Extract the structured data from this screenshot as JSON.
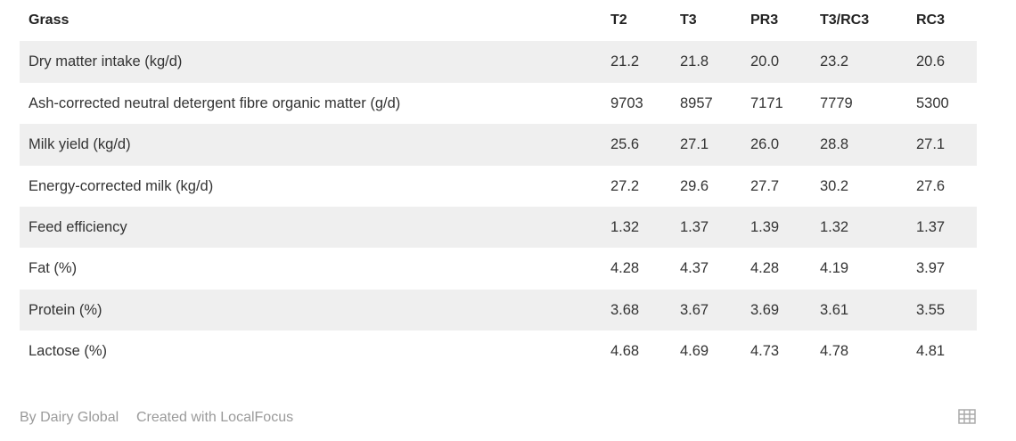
{
  "table": {
    "header": [
      "Grass",
      "T2",
      "T3",
      "PR3",
      "T3/RC3",
      "RC3"
    ],
    "rows": [
      [
        "Dry matter intake (kg/d)",
        "21.2",
        "21.8",
        "20.0",
        "23.2",
        "20.6"
      ],
      [
        "Ash-corrected neutral detergent fibre organic matter (g/d)",
        "9703",
        "8957",
        "7171",
        "7779",
        "5300"
      ],
      [
        "Milk yield (kg/d)",
        "25.6",
        "27.1",
        "26.0",
        "28.8",
        "27.1"
      ],
      [
        "Energy-corrected milk (kg/d)",
        "27.2",
        "29.6",
        "27.7",
        "30.2",
        "27.6"
      ],
      [
        "Feed efficiency",
        "1.32",
        "1.37",
        "1.39",
        "1.32",
        "1.37"
      ],
      [
        "Fat (%)",
        "4.28",
        "4.37",
        "4.28",
        "4.19",
        "3.97"
      ],
      [
        "Protein (%)",
        "3.68",
        "3.67",
        "3.69",
        "3.61",
        "3.55"
      ],
      [
        "Lactose (%)",
        "4.68",
        "4.69",
        "4.73",
        "4.78",
        "4.81"
      ]
    ]
  },
  "footer": {
    "source": "By Dairy Global",
    "credit": "Created with LocalFocus"
  }
}
